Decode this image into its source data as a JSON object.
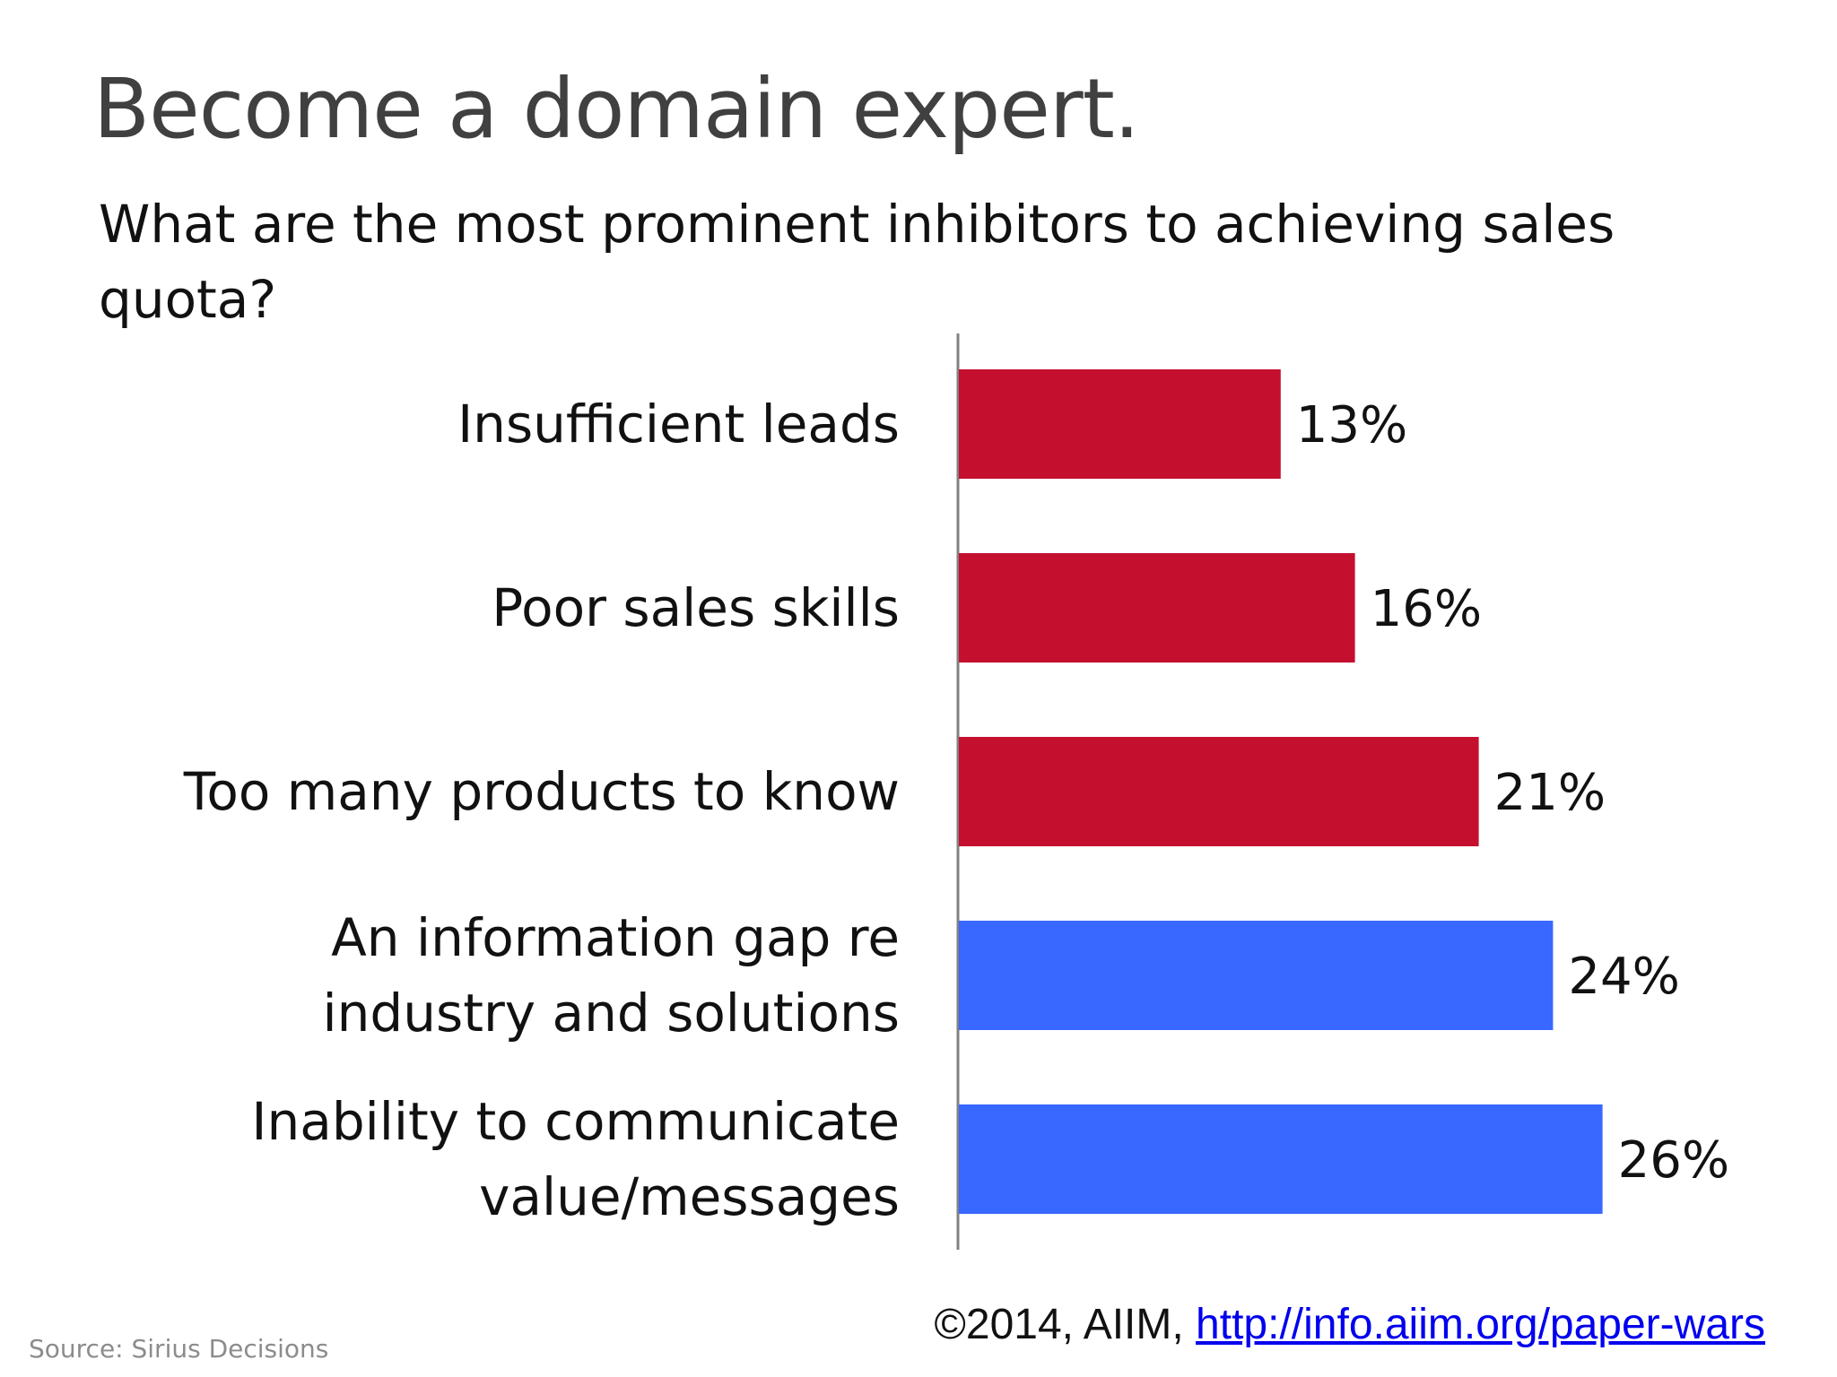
{
  "slide": {
    "title": "Become a domain expert.",
    "subtitle": "What are the most prominent inhibitors to achieving sales quota?",
    "source": "Source: Sirius Decisions",
    "credit_prefix": "©2014, AIIM, ",
    "credit_link": "http://info.aiim.org/paper-wars"
  },
  "colors": {
    "highlight_red": "#c40f2f",
    "highlight_blue": "#3868ff",
    "axis": "#808080",
    "text": "#111111"
  },
  "chart_data": {
    "type": "bar",
    "orientation": "horizontal",
    "categories": [
      [
        "Insufficient leads"
      ],
      [
        "Poor sales skills"
      ],
      [
        "Too many products to know"
      ],
      [
        "An information gap re",
        "industry and solutions"
      ],
      [
        "Inability to communicate",
        "value/messages"
      ]
    ],
    "values": [
      13,
      16,
      21,
      24,
      26
    ],
    "data_labels": [
      "13%",
      "16%",
      "21%",
      "24%",
      "26%"
    ],
    "bar_colors": [
      "#c40f2f",
      "#c40f2f",
      "#c40f2f",
      "#3868ff",
      "#3868ff"
    ],
    "xlim": [
      0,
      30
    ],
    "grid": false,
    "legend": "none",
    "xlabel": "",
    "ylabel": ""
  }
}
